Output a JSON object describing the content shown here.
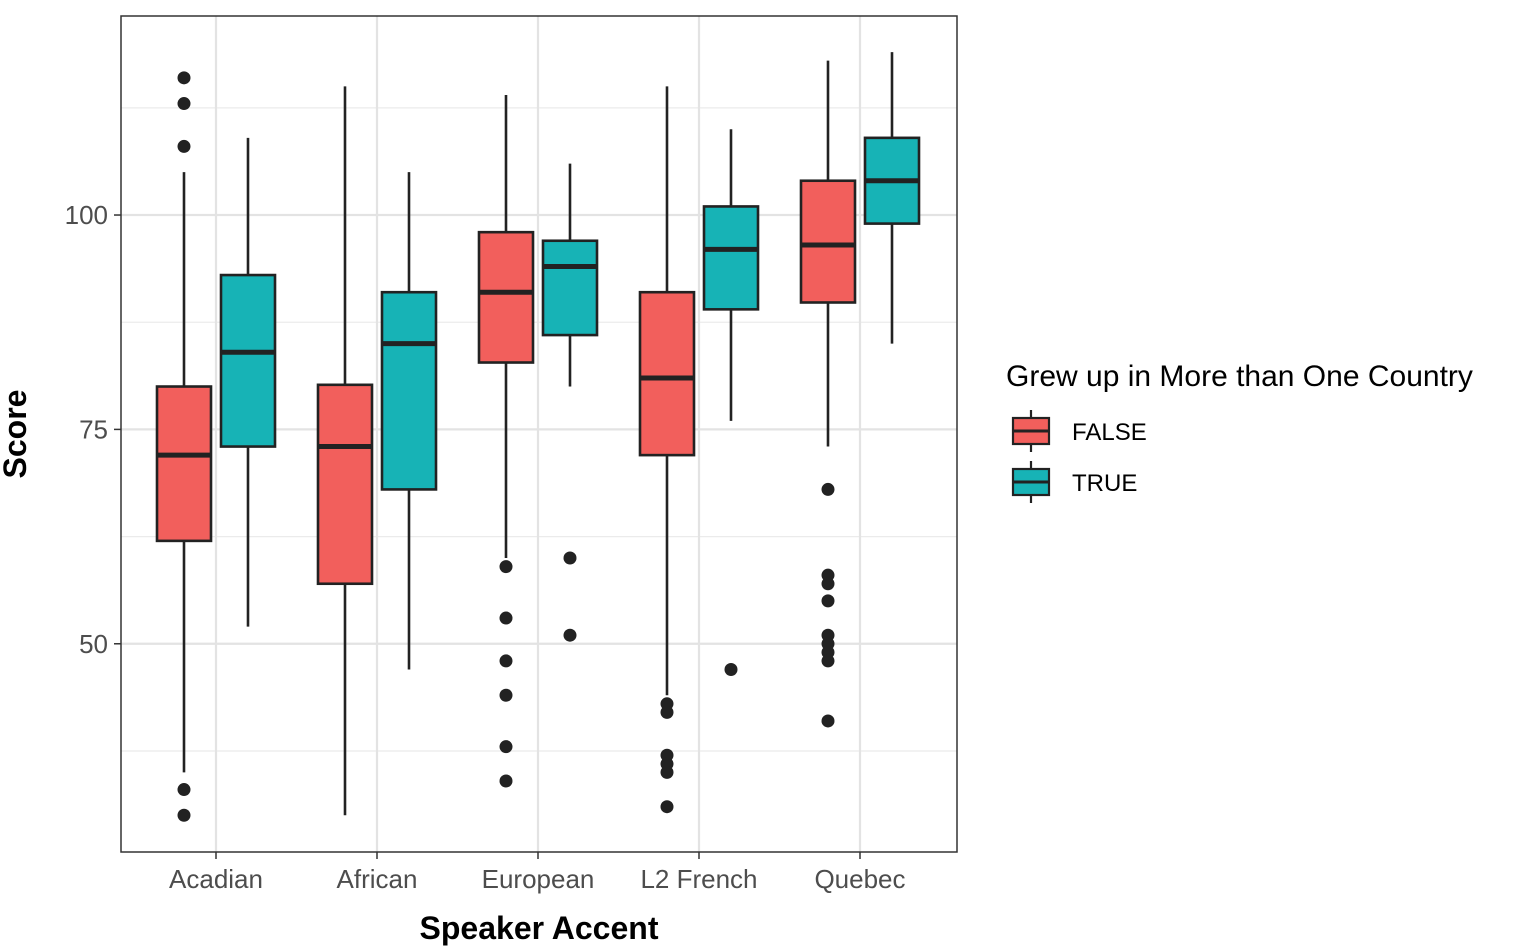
{
  "chart_data": {
    "type": "boxplot",
    "xlabel": "Speaker Accent",
    "ylabel": "Score",
    "ylim": [
      27.5,
      123
    ],
    "yticks": [
      50,
      75,
      100
    ],
    "grid": true,
    "categories": [
      "Acadian",
      "African",
      "European",
      "L2 French",
      "Quebec"
    ],
    "legend": {
      "title": "Grew up in More than One Country",
      "position": "right",
      "entries": [
        "FALSE",
        "TRUE"
      ]
    },
    "series": [
      {
        "name": "FALSE",
        "color": "#F25F5C",
        "boxes": [
          {
            "whisker_low": 35,
            "q1": 62,
            "median": 72,
            "q3": 80,
            "whisker_high": 105,
            "outliers": [
              116,
              113,
              108,
              33,
              30
            ]
          },
          {
            "whisker_low": 30,
            "q1": 57,
            "median": 73,
            "q3": 80.2,
            "whisker_high": 115,
            "outliers": []
          },
          {
            "whisker_low": 60,
            "q1": 82.8,
            "median": 91,
            "q3": 98,
            "whisker_high": 114,
            "outliers": [
              59,
              53,
              48,
              44,
              38,
              34
            ]
          },
          {
            "whisker_low": 44,
            "q1": 72,
            "median": 81,
            "q3": 91,
            "whisker_high": 115,
            "outliers": [
              43,
              42,
              37,
              36,
              35,
              31
            ]
          },
          {
            "whisker_low": 73,
            "q1": 89.8,
            "median": 96.5,
            "q3": 104,
            "whisker_high": 118,
            "outliers": [
              68,
              58,
              57,
              55,
              51,
              50,
              49,
              48,
              41
            ]
          }
        ]
      },
      {
        "name": "TRUE",
        "color": "#17B3B6",
        "boxes": [
          {
            "whisker_low": 52,
            "q1": 73,
            "median": 84,
            "q3": 93,
            "whisker_high": 109,
            "outliers": []
          },
          {
            "whisker_low": 47,
            "q1": 68,
            "median": 85,
            "q3": 91,
            "whisker_high": 105,
            "outliers": []
          },
          {
            "whisker_low": 80,
            "q1": 86,
            "median": 94,
            "q3": 97,
            "whisker_high": 106,
            "outliers": [
              60,
              51
            ]
          },
          {
            "whisker_low": 76,
            "q1": 89,
            "median": 96,
            "q3": 101,
            "whisker_high": 110,
            "outliers": [
              47
            ]
          },
          {
            "whisker_low": 85,
            "q1": 99,
            "median": 104,
            "q3": 109,
            "whisker_high": 119,
            "outliers": []
          }
        ]
      }
    ]
  }
}
